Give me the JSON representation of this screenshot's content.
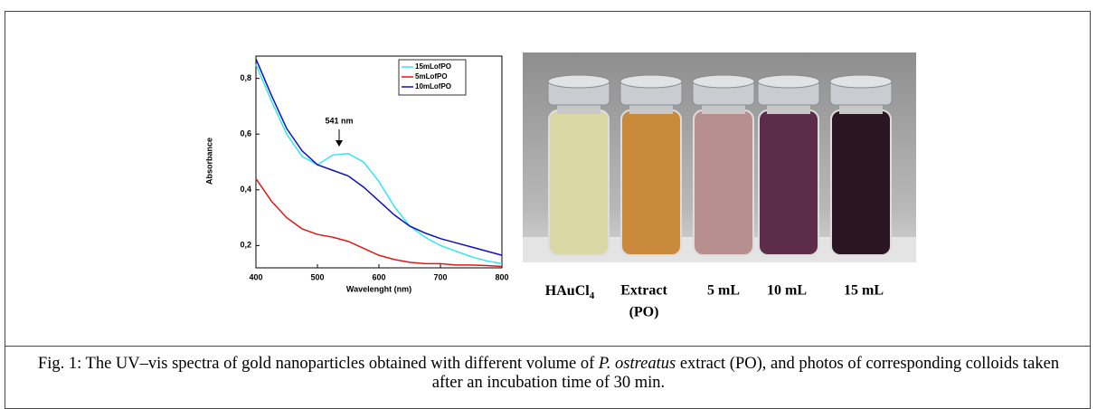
{
  "chart_data": {
    "type": "line",
    "xlabel": "Wavelenght (nm)",
    "ylabel": "Absorbance",
    "annotation": "541 nm",
    "x": [
      400,
      425,
      450,
      475,
      500,
      525,
      550,
      575,
      600,
      625,
      650,
      675,
      700,
      725,
      750,
      775,
      800
    ],
    "series": [
      {
        "name": "15mLofPO",
        "color": "#33e6f0",
        "values": [
          0.85,
          0.72,
          0.6,
          0.52,
          0.49,
          0.525,
          0.53,
          0.5,
          0.43,
          0.34,
          0.27,
          0.23,
          0.2,
          0.18,
          0.16,
          0.145,
          0.135
        ]
      },
      {
        "name": "5mLofPO",
        "color": "#e01818",
        "values": [
          0.44,
          0.36,
          0.3,
          0.26,
          0.24,
          0.23,
          0.215,
          0.19,
          0.165,
          0.15,
          0.14,
          0.135,
          0.135,
          0.13,
          0.13,
          0.128,
          0.125
        ]
      },
      {
        "name": "10mLofPO",
        "color": "#1010c0",
        "values": [
          0.87,
          0.74,
          0.62,
          0.54,
          0.49,
          0.47,
          0.45,
          0.41,
          0.36,
          0.31,
          0.27,
          0.245,
          0.225,
          0.21,
          0.195,
          0.18,
          0.165
        ]
      }
    ],
    "xlim": [
      400,
      800
    ],
    "xticks": [
      400,
      500,
      600,
      700,
      800
    ],
    "ylim": [
      0.12,
      0.88
    ],
    "yticks": [
      {
        "value": 0.2,
        "label": "0,2"
      },
      {
        "value": 0.4,
        "label": "0,4"
      },
      {
        "value": 0.6,
        "label": "0,6"
      },
      {
        "value": 0.8,
        "label": "0,8"
      }
    ],
    "grid": false,
    "legend": "upper right"
  },
  "photo": {
    "labels": [
      {
        "main": "HAuCl",
        "sub": "4"
      },
      {
        "main": "Extract",
        "line2": "(PO)"
      },
      {
        "main": "5 mL"
      },
      {
        "main": "10 mL"
      },
      {
        "main": "15 mL"
      }
    ]
  },
  "caption": {
    "text1": "Fig. 1: The UV–vis spectra of gold nanoparticles obtained with different volume of ",
    "italic": "P. ostreatus",
    "text2": " extract (PO), and photos of corresponding colloids taken after an incubation time of 30 min."
  }
}
